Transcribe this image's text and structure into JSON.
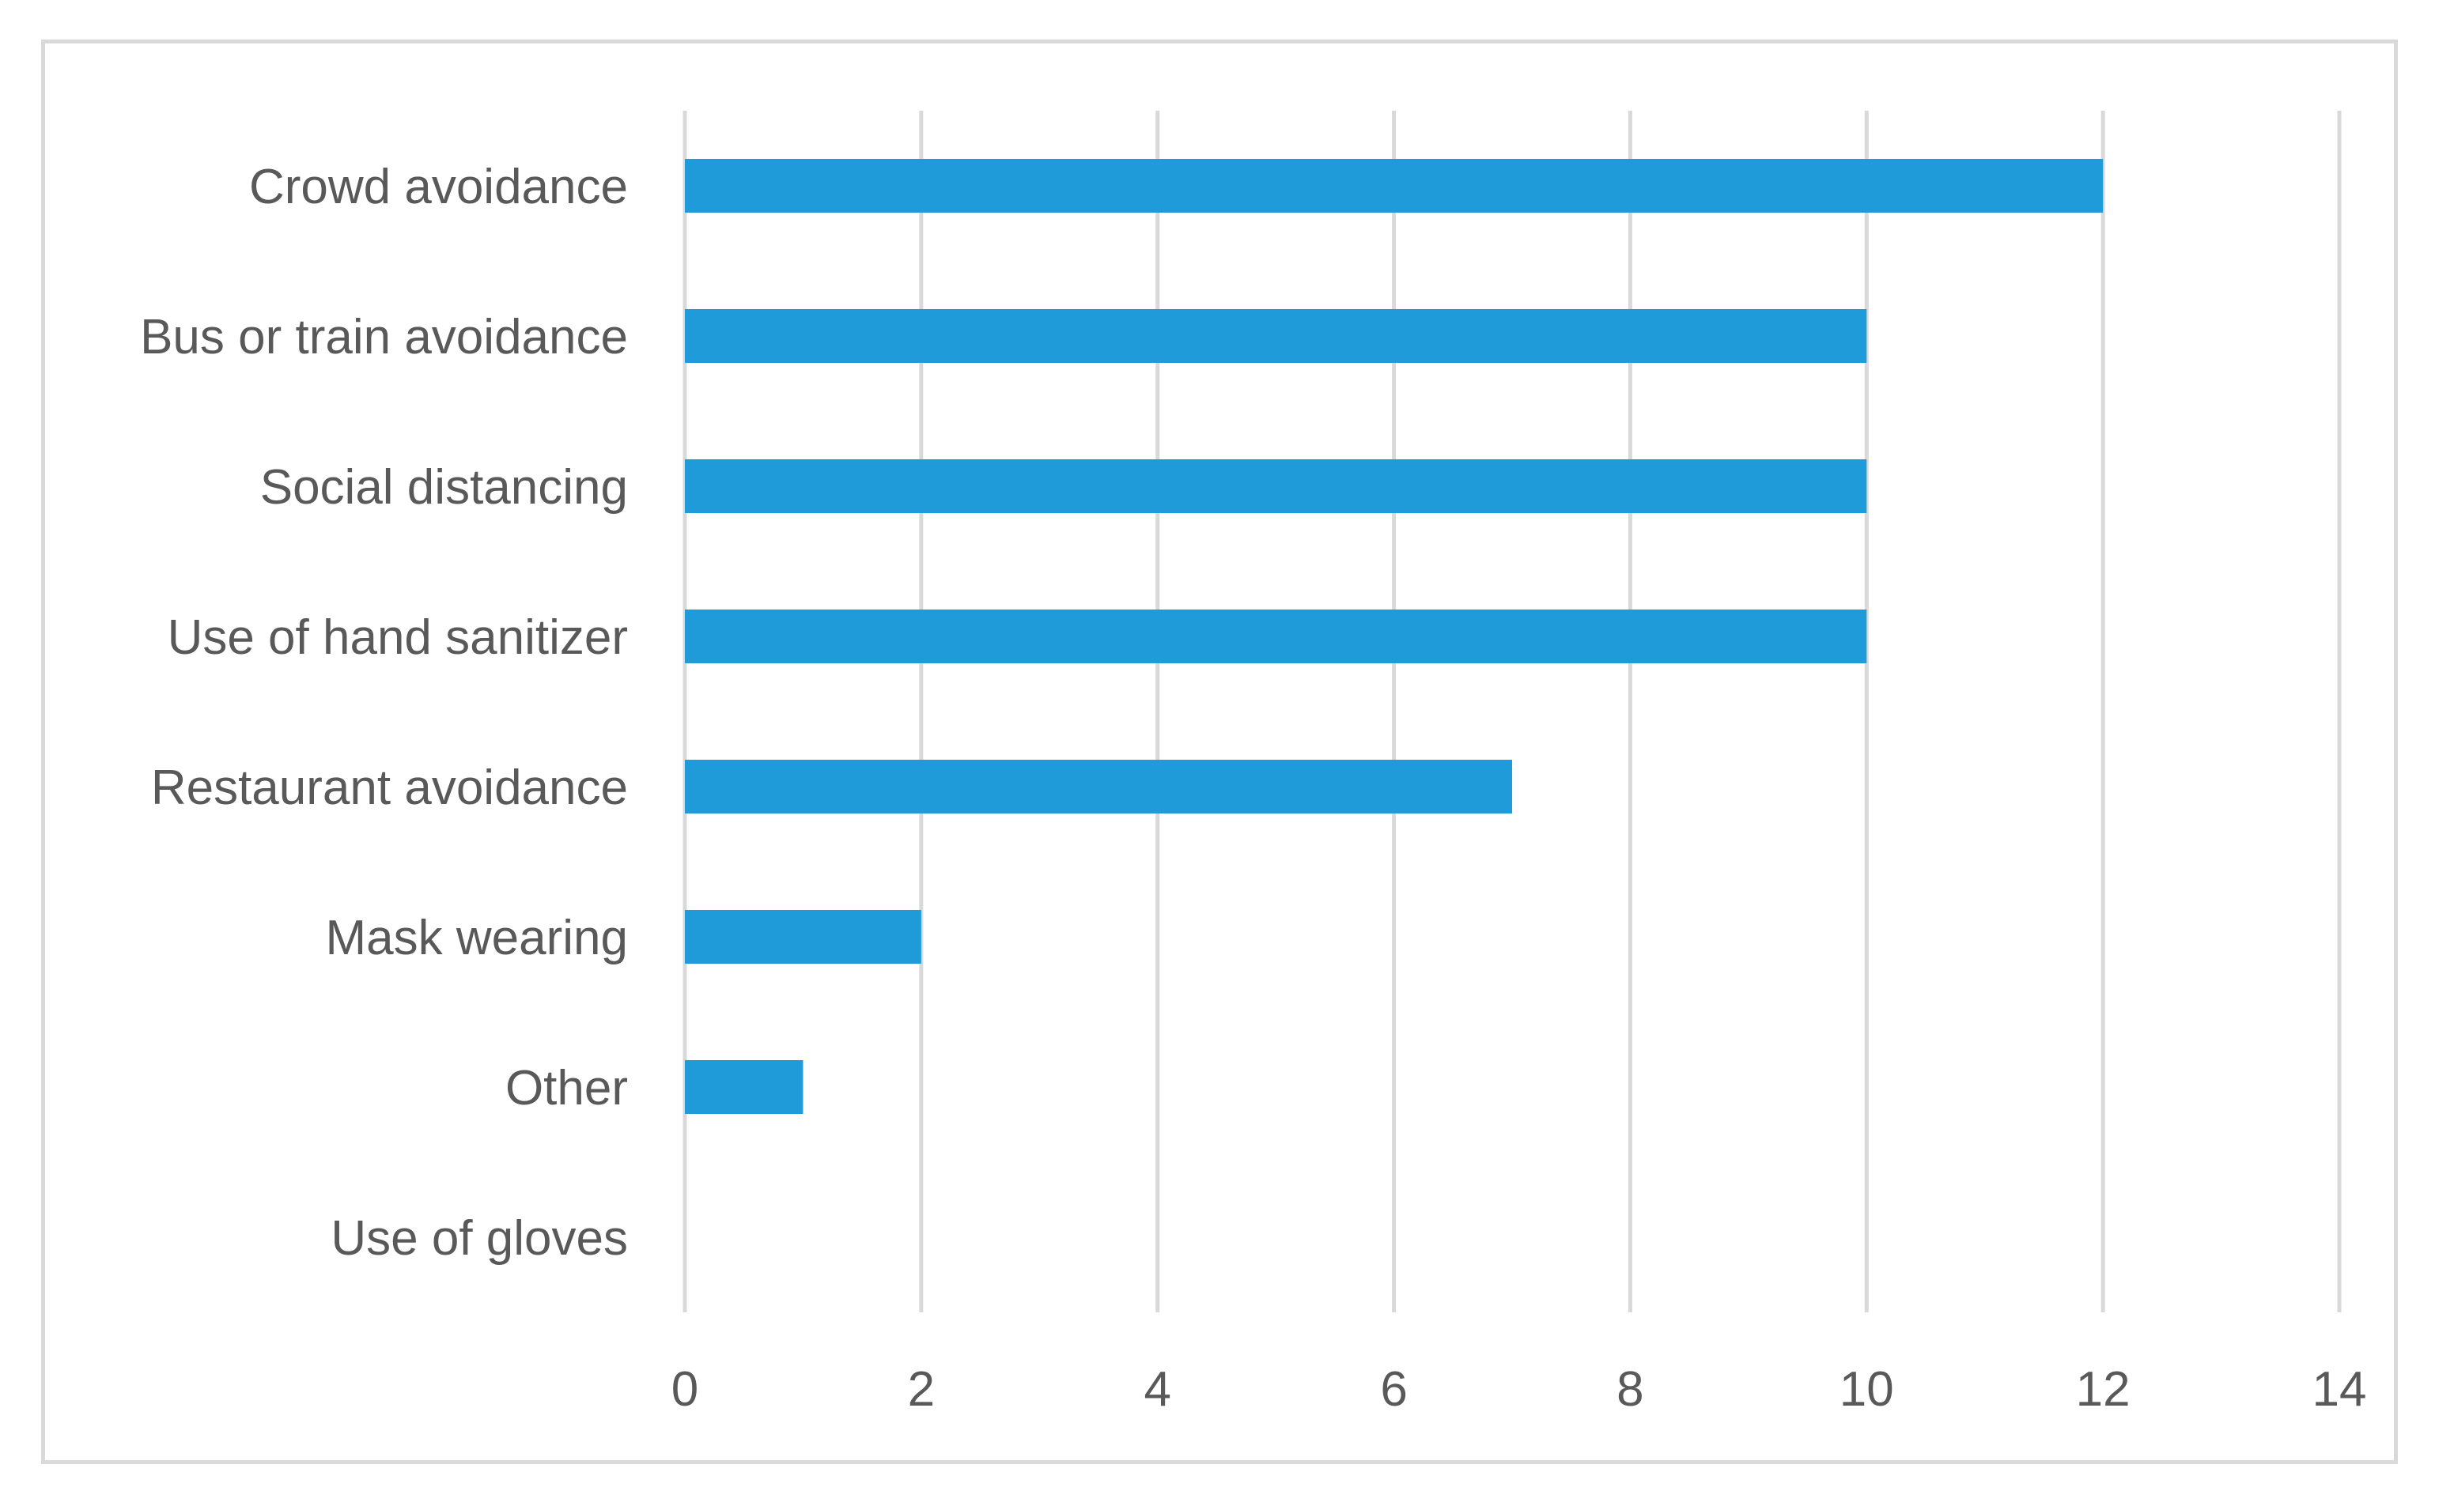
{
  "chart_data": {
    "type": "bar",
    "orientation": "horizontal",
    "categories": [
      "Crowd avoidance",
      "Bus or train avoidance",
      "Social distancing",
      "Use of hand sanitizer",
      "Restaurant avoidance",
      "Mask wearing",
      "Other",
      "Use of gloves"
    ],
    "values": [
      12,
      10,
      10,
      10,
      7,
      2,
      1,
      0
    ],
    "xlim": [
      0,
      14
    ],
    "xticks": [
      "0",
      "2",
      "4",
      "6",
      "8",
      "10",
      "12",
      "14"
    ],
    "grid": true,
    "bar_color": "#1f9bd9",
    "grid_color": "#d9d9d9",
    "text_color": "#595959"
  }
}
